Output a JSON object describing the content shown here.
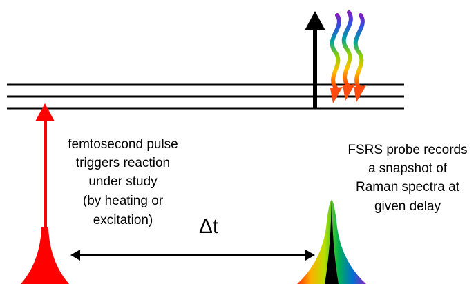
{
  "labels": {
    "pump": [
      "femtosecond pulse",
      "triggers reaction",
      "under study",
      "(by heating or",
      "excitation)"
    ],
    "delay": "Δt",
    "probe": [
      "FSRS probe records",
      "a snapshot  of",
      "Raman spectra at",
      "given delay"
    ]
  }
}
